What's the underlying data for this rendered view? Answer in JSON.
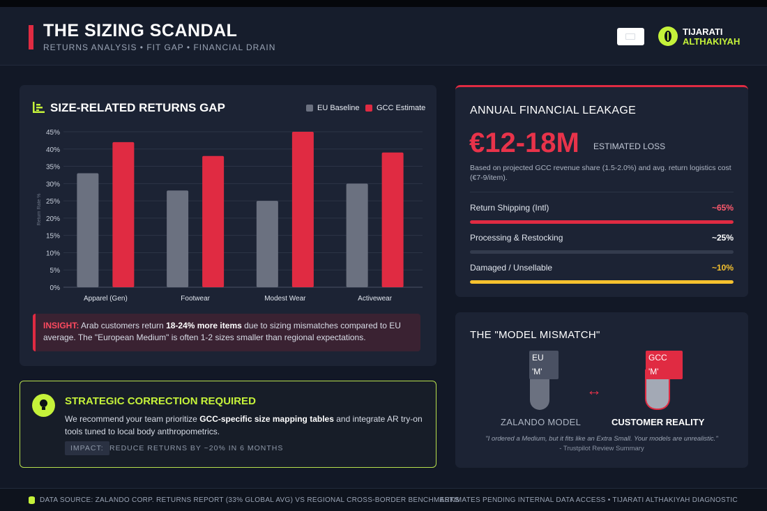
{
  "header": {
    "title": "THE SIZING SCANDAL",
    "subtitle": "RETURNS ANALYSIS • FIT GAP • FINANCIAL DRAIN",
    "brand_line1": "TIJARATI",
    "brand_line2": "ALTHAKIYAH"
  },
  "chart_card": {
    "title": "SIZE-RELATED RETURNS GAP",
    "legend": [
      {
        "name": "EU Baseline",
        "color": "#6b7180"
      },
      {
        "name": "GCC Estimate",
        "color": "#e02b42"
      }
    ],
    "insight_label": "INSIGHT:",
    "insight_pre": " Arab customers return ",
    "insight_bold": "18-24% more items",
    "insight_post": " due to sizing mismatches compared to EU average. The \"European Medium\" is often 1-2 sizes smaller than regional expectations."
  },
  "chart_data": {
    "type": "bar",
    "categories": [
      "Apparel (Gen)",
      "Footwear",
      "Modest Wear",
      "Activewear"
    ],
    "series": [
      {
        "name": "EU Baseline",
        "values": [
          33,
          28,
          25,
          30
        ],
        "color": "#6b7180"
      },
      {
        "name": "GCC Estimate",
        "values": [
          42,
          38,
          45,
          39
        ],
        "color": "#e02b42"
      }
    ],
    "ylabel": "Return Rate %",
    "ylim": [
      0,
      45
    ],
    "yticks": [
      "0%",
      "5%",
      "10%",
      "15%",
      "20%",
      "25%",
      "30%",
      "35%",
      "40%",
      "45%"
    ],
    "grid": true,
    "legend_position": "top-right"
  },
  "strategy": {
    "title": "STRATEGIC CORRECTION REQUIRED",
    "body_pre": "We recommend your team prioritize ",
    "body_bold": "GCC-specific size mapping tables",
    "body_post": " and integrate AR try-on tools tuned to local body anthropometrics.",
    "impact_label": "IMPACT:",
    "impact_text": "REDUCE RETURNS BY ~20% IN 6 MONTHS"
  },
  "leakage": {
    "title": "ANNUAL FINANCIAL LEAKAGE",
    "amount": "€12-18M",
    "amount_label": "ESTIMATED LOSS",
    "note": "Based on projected GCC revenue share (1.5-2.0%) and avg. return logistics cost (€7-9/item).",
    "rows": [
      {
        "name": "Return Shipping (Intl)",
        "pct": "~65%",
        "value": 100,
        "color": "#e02b42",
        "pct_color": "#ff5a6d"
      },
      {
        "name": "Processing & Restocking",
        "pct": "~25%",
        "value": 100,
        "color": "#333b4d",
        "pct_color": "#ffffff"
      },
      {
        "name": "Damaged / Unsellable",
        "pct": "~10%",
        "value": 100,
        "color": "#f5c12e",
        "pct_color": "#f5c12e"
      }
    ]
  },
  "model": {
    "title": "THE \"MODEL MISMATCH\"",
    "eu_tag_line1": "EU",
    "eu_tag_line2": "'M'",
    "gcc_tag_line1": "GCC",
    "gcc_tag_line2": "'M'",
    "eu_label": "ZALANDO MODEL",
    "gcc_label": "CUSTOMER REALITY",
    "arrow": "↔",
    "quote": "\"I ordered a Medium, but it fits like an Extra Small. Your models are unrealistic.\"",
    "quote_source": "- Trustpilot Review Summary"
  },
  "footer": {
    "left": "DATA SOURCE: ZALANDO CORP. RETURNS REPORT (33% GLOBAL AVG) VS REGIONAL CROSS-BORDER BENCHMARKS",
    "right": "ESTIMATES PENDING INTERNAL DATA ACCESS • TIJARATI ALTHAKIYAH DIAGNOSTIC"
  }
}
